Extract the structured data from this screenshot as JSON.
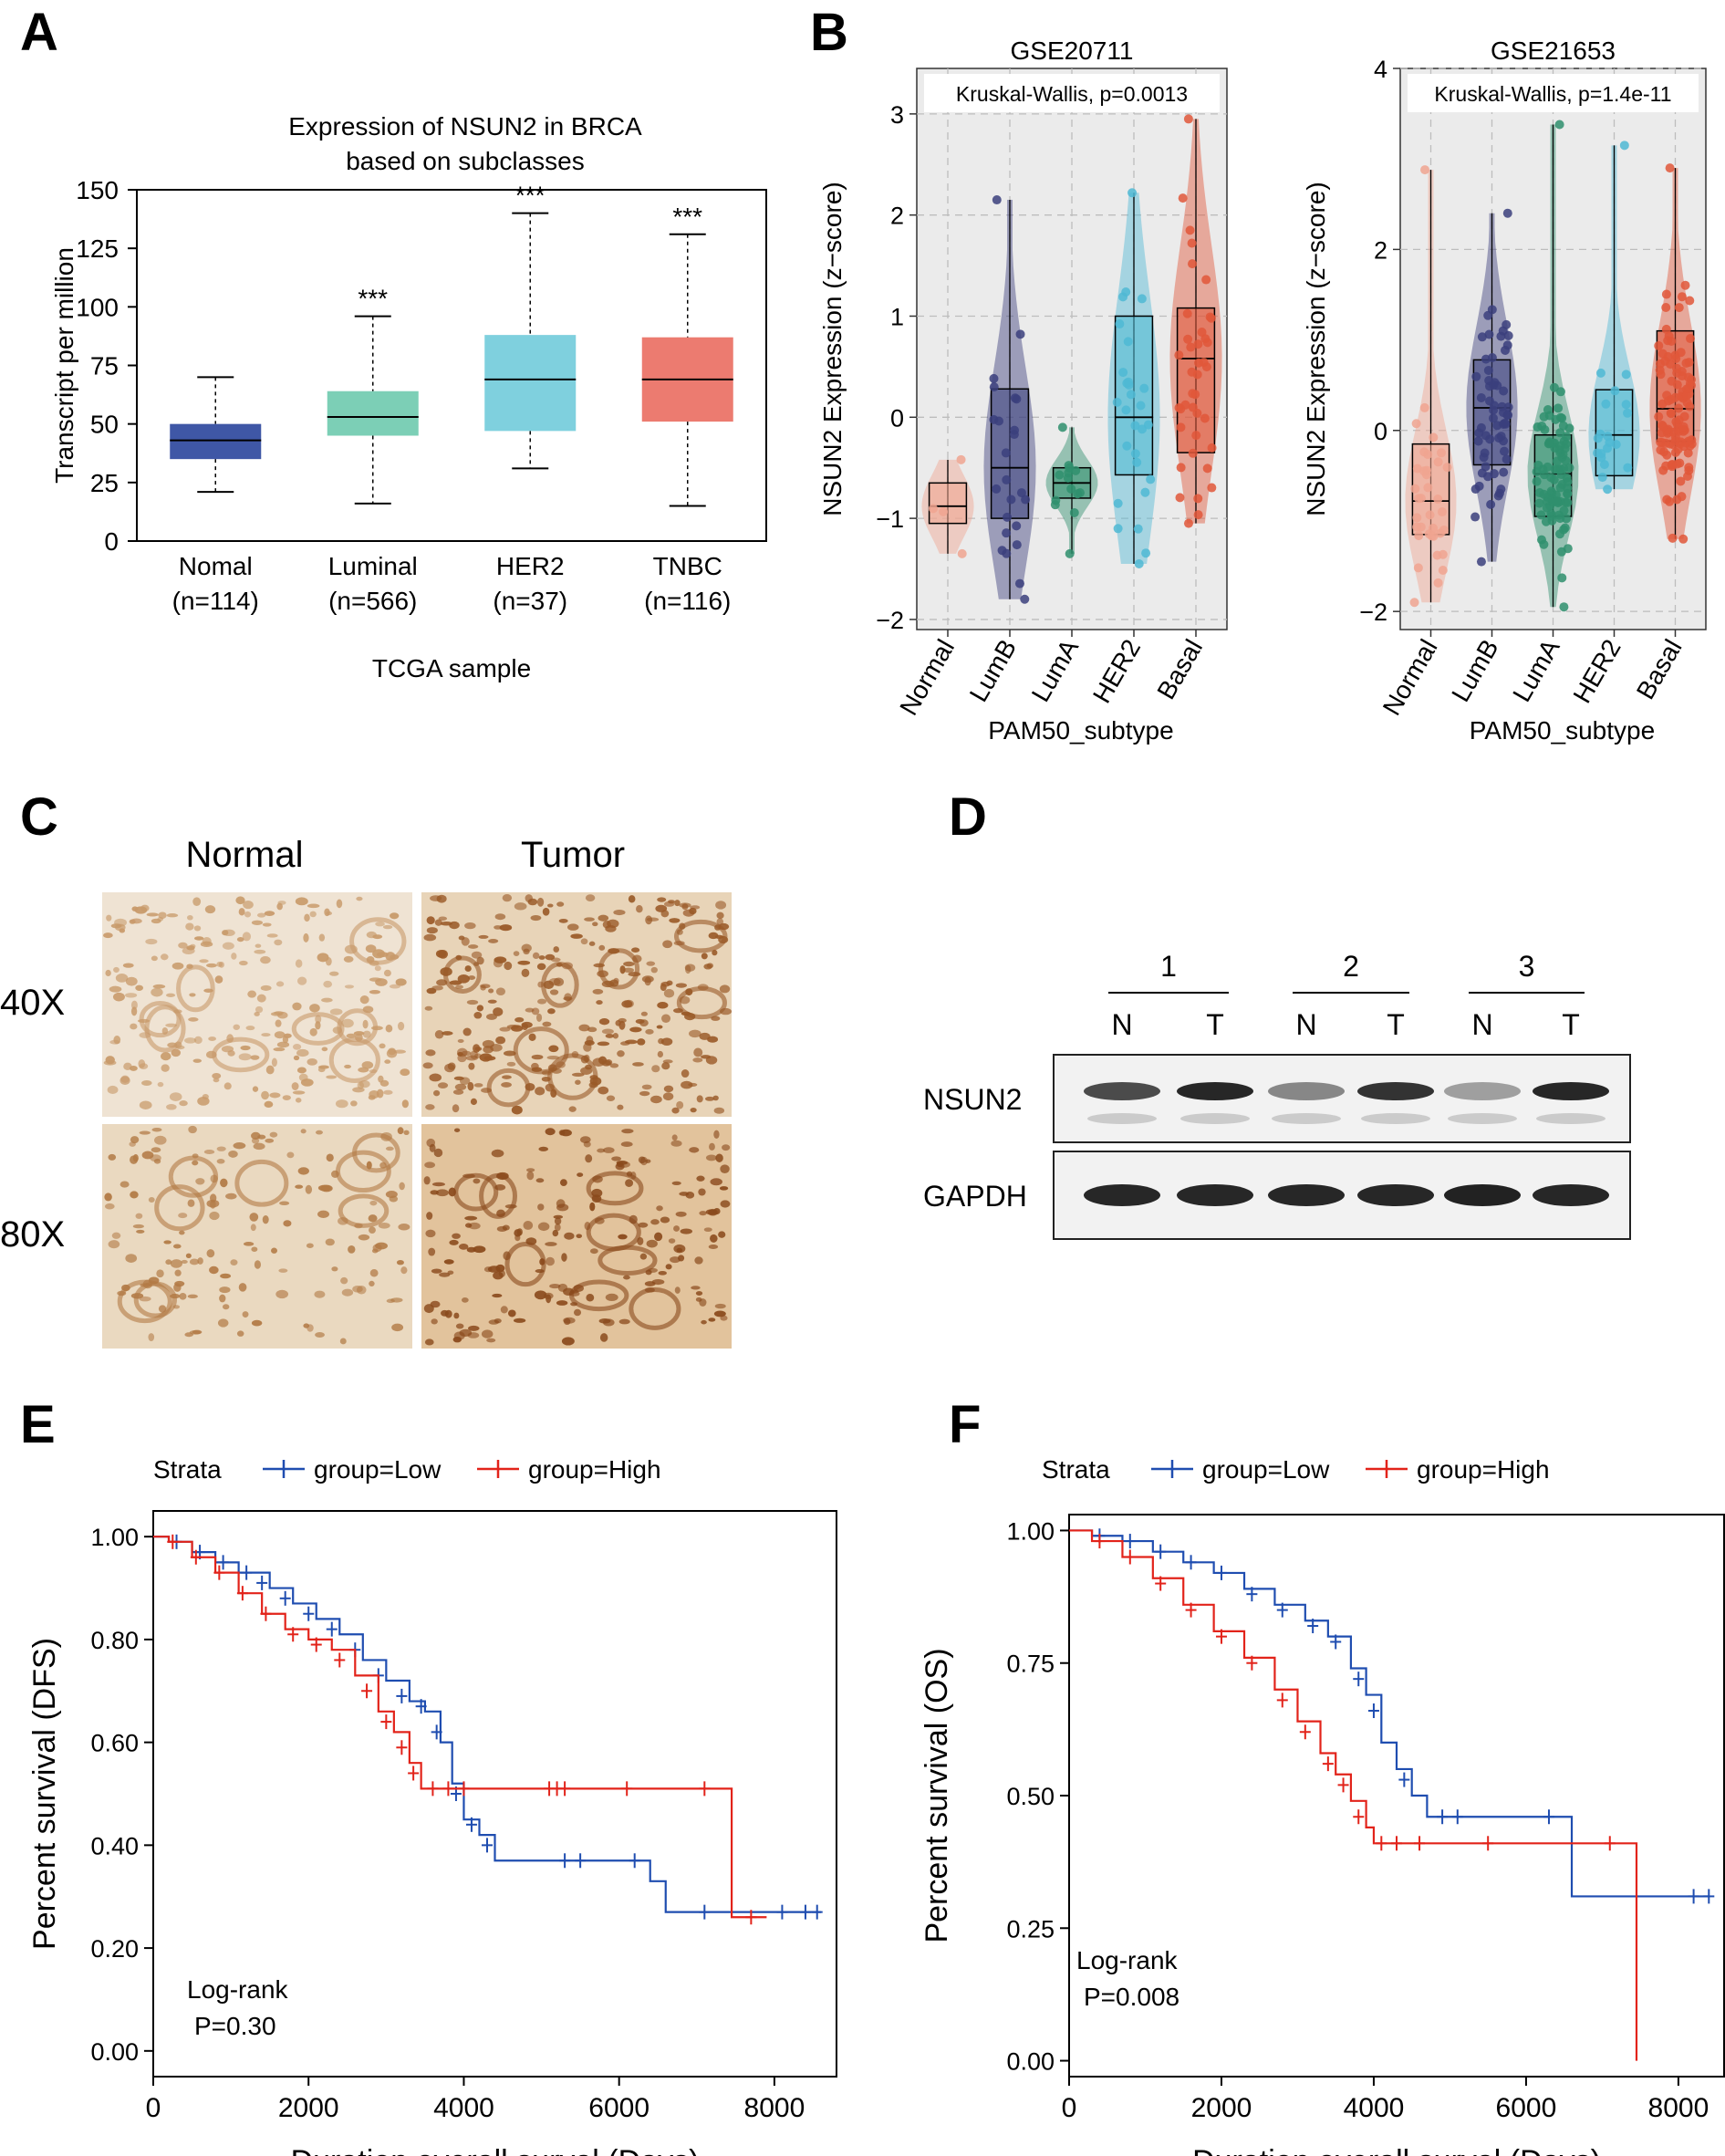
{
  "panel_labels": {
    "a": "A",
    "b": "B",
    "c": "C",
    "d": "D",
    "e": "E",
    "f": "F"
  },
  "colors": {
    "normal_blue": "#3f57a6",
    "luminal": "#7ccfb6",
    "her2": "#7fd0de",
    "tnbc": "#ec7b70",
    "v_normal": "#f0a590",
    "v_lumb": "#3b3f7d",
    "v_luma": "#2f8f6d",
    "v_her2": "#4fb9d4",
    "v_basal": "#e0573a",
    "km_low": "#1f4db0",
    "km_high": "#e2231a"
  },
  "chart_data": [
    {
      "id": "A",
      "type": "box",
      "title": "Expression of NSUN2 in BRCA",
      "subtitle": "based on subclasses",
      "xlabel": "TCGA sample",
      "ylabel": "Transcript per million",
      "ylim": [
        0,
        150
      ],
      "yticks": [
        0,
        25,
        50,
        75,
        100,
        125,
        150
      ],
      "categories": [
        {
          "name": "Nomal",
          "n": "(n=114)",
          "min": 21,
          "q1": 35,
          "median": 43,
          "q3": 50,
          "max": 70,
          "sig": "",
          "color": "normal_blue"
        },
        {
          "name": "Luminal",
          "n": "(n=566)",
          "min": 16,
          "q1": 45,
          "median": 53,
          "q3": 64,
          "max": 96,
          "sig": "***",
          "color": "luminal"
        },
        {
          "name": "HER2",
          "n": "(n=37)",
          "min": 31,
          "q1": 47,
          "median": 69,
          "q3": 88,
          "max": 140,
          "sig": "***",
          "color": "her2"
        },
        {
          "name": "TNBC",
          "n": "(n=116)",
          "min": 15,
          "q1": 51,
          "median": 69,
          "q3": 87,
          "max": 131,
          "sig": "***",
          "color": "tnbc"
        }
      ]
    },
    {
      "id": "B1",
      "type": "violin-box",
      "title": "GSE20711",
      "annotation": "Kruskal-Wallis, p=0.0013",
      "xlabel": "PAM50_subtype",
      "ylabel": "NSUN2 Expression (z−score)",
      "ylim": [
        -2.1,
        3.45
      ],
      "yticks": [
        -2,
        -1,
        0,
        1,
        2,
        3
      ],
      "ytick_labels": [
        "−2",
        "−1",
        "0",
        "1",
        "2",
        "3"
      ],
      "categories": [
        {
          "name": "Normal",
          "min": -1.35,
          "q1": -1.05,
          "median": -0.88,
          "q3": -0.65,
          "max": -0.42,
          "color": "v_normal",
          "n": 4
        },
        {
          "name": "LumB",
          "min": -1.8,
          "q1": -1.0,
          "median": -0.5,
          "q3": 0.28,
          "max": 2.15,
          "color": "v_lumb",
          "n": 24
        },
        {
          "name": "LumA",
          "min": -1.35,
          "q1": -0.8,
          "median": -0.65,
          "q3": -0.5,
          "max": -0.1,
          "color": "v_luma",
          "n": 14
        },
        {
          "name": "HER2",
          "min": -1.45,
          "q1": -0.57,
          "median": 0.0,
          "q3": 1.0,
          "max": 2.22,
          "color": "v_her2",
          "n": 28
        },
        {
          "name": "Basal",
          "min": -1.05,
          "q1": -0.35,
          "median": 0.58,
          "q3": 1.08,
          "max": 2.95,
          "color": "v_basal",
          "n": 40
        }
      ]
    },
    {
      "id": "B2",
      "type": "violin-box",
      "title": "GSE21653",
      "annotation": "Kruskal-Wallis, p=1.4e-11",
      "xlabel": "PAM50_subtype",
      "ylabel": "NSUN2 Expression (z−score)",
      "ylim": [
        -2.2,
        4.0
      ],
      "yticks": [
        -2,
        0,
        2,
        4
      ],
      "ytick_labels": [
        "−2",
        "0",
        "2",
        "4"
      ],
      "categories": [
        {
          "name": "Normal",
          "min": -1.9,
          "q1": -1.15,
          "median": -0.78,
          "q3": -0.15,
          "max": 2.88,
          "color": "v_normal",
          "n": 36
        },
        {
          "name": "LumB",
          "min": -1.45,
          "q1": -0.38,
          "median": 0.25,
          "q3": 0.78,
          "max": 2.4,
          "color": "v_lumb",
          "n": 60
        },
        {
          "name": "LumA",
          "min": -1.95,
          "q1": -0.95,
          "median": -0.48,
          "q3": -0.05,
          "max": 3.38,
          "color": "v_luma",
          "n": 90
        },
        {
          "name": "HER2",
          "min": -0.65,
          "q1": -0.5,
          "median": -0.05,
          "q3": 0.45,
          "max": 3.15,
          "color": "v_her2",
          "n": 20
        },
        {
          "name": "Basal",
          "min": -1.2,
          "q1": -0.12,
          "median": 0.24,
          "q3": 1.1,
          "max": 2.9,
          "color": "v_basal",
          "n": 110
        }
      ]
    },
    {
      "id": "E",
      "type": "line",
      "subtype": "kaplan-meier",
      "legend_title": "Strata",
      "series": [
        {
          "name": "group=Low",
          "color": "km_low",
          "points": [
            [
              0,
              1.0
            ],
            [
              200,
              0.99
            ],
            [
              500,
              0.97
            ],
            [
              800,
              0.95
            ],
            [
              1100,
              0.93
            ],
            [
              1500,
              0.9
            ],
            [
              1800,
              0.87
            ],
            [
              2100,
              0.84
            ],
            [
              2400,
              0.81
            ],
            [
              2700,
              0.76
            ],
            [
              3000,
              0.72
            ],
            [
              3300,
              0.68
            ],
            [
              3500,
              0.66
            ],
            [
              3700,
              0.6
            ],
            [
              3850,
              0.52
            ],
            [
              4000,
              0.45
            ],
            [
              4200,
              0.42
            ],
            [
              4400,
              0.37
            ],
            [
              6300,
              0.37
            ],
            [
              6400,
              0.33
            ],
            [
              6600,
              0.27
            ],
            [
              8600,
              0.27
            ]
          ],
          "censors": [
            [
              300,
              0.99
            ],
            [
              600,
              0.97
            ],
            [
              900,
              0.95
            ],
            [
              1200,
              0.93
            ],
            [
              1400,
              0.91
            ],
            [
              1700,
              0.88
            ],
            [
              2000,
              0.85
            ],
            [
              2300,
              0.82
            ],
            [
              2600,
              0.78
            ],
            [
              2900,
              0.73
            ],
            [
              3200,
              0.69
            ],
            [
              3450,
              0.67
            ],
            [
              3650,
              0.62
            ],
            [
              3900,
              0.5
            ],
            [
              4100,
              0.44
            ],
            [
              4300,
              0.4
            ],
            [
              5300,
              0.37
            ],
            [
              5500,
              0.37
            ],
            [
              6200,
              0.37
            ],
            [
              7100,
              0.27
            ],
            [
              8100,
              0.27
            ],
            [
              8400,
              0.27
            ],
            [
              8550,
              0.27
            ]
          ]
        },
        {
          "name": "group=High",
          "color": "km_high",
          "points": [
            [
              0,
              1.0
            ],
            [
              200,
              0.99
            ],
            [
              500,
              0.96
            ],
            [
              800,
              0.93
            ],
            [
              1100,
              0.89
            ],
            [
              1400,
              0.85
            ],
            [
              1700,
              0.82
            ],
            [
              2000,
              0.8
            ],
            [
              2300,
              0.78
            ],
            [
              2600,
              0.73
            ],
            [
              2900,
              0.66
            ],
            [
              3100,
              0.62
            ],
            [
              3300,
              0.56
            ],
            [
              3450,
              0.51
            ],
            [
              7400,
              0.51
            ],
            [
              7450,
              0.26
            ],
            [
              7900,
              0.26
            ]
          ],
          "censors": [
            [
              250,
              0.99
            ],
            [
              550,
              0.96
            ],
            [
              850,
              0.93
            ],
            [
              1150,
              0.89
            ],
            [
              1450,
              0.85
            ],
            [
              1800,
              0.81
            ],
            [
              2100,
              0.79
            ],
            [
              2400,
              0.76
            ],
            [
              2750,
              0.7
            ],
            [
              3000,
              0.64
            ],
            [
              3200,
              0.59
            ],
            [
              3350,
              0.54
            ],
            [
              3600,
              0.51
            ],
            [
              3800,
              0.51
            ],
            [
              4000,
              0.51
            ],
            [
              5100,
              0.51
            ],
            [
              5200,
              0.51
            ],
            [
              5300,
              0.51
            ],
            [
              6100,
              0.51
            ],
            [
              7100,
              0.51
            ],
            [
              7700,
              0.26
            ]
          ]
        }
      ],
      "xlabel": "Duration overall surval (Days)",
      "ylabel": "Percent survival (DFS)",
      "xlim": [
        0,
        8800
      ],
      "ylim": [
        -0.05,
        1.05
      ],
      "xticks": [
        0,
        2000,
        4000,
        6000,
        8000
      ],
      "yticks": [
        0.0,
        0.2,
        0.4,
        0.6,
        0.8,
        1.0
      ],
      "ytick_labels": [
        "0.00",
        "0.20",
        "0.40",
        "0.60",
        "0.80",
        "1.00"
      ],
      "annotation": [
        "Log-rank",
        "P=0.30"
      ]
    },
    {
      "id": "F",
      "type": "line",
      "subtype": "kaplan-meier",
      "legend_title": "Strata",
      "series": [
        {
          "name": "group=Low",
          "color": "km_low",
          "points": [
            [
              0,
              1.0
            ],
            [
              300,
              0.99
            ],
            [
              700,
              0.98
            ],
            [
              1100,
              0.96
            ],
            [
              1500,
              0.94
            ],
            [
              1900,
              0.92
            ],
            [
              2300,
              0.89
            ],
            [
              2700,
              0.86
            ],
            [
              3100,
              0.83
            ],
            [
              3400,
              0.8
            ],
            [
              3700,
              0.74
            ],
            [
              3900,
              0.69
            ],
            [
              4100,
              0.6
            ],
            [
              4300,
              0.55
            ],
            [
              4500,
              0.5
            ],
            [
              4700,
              0.46
            ],
            [
              6400,
              0.46
            ],
            [
              6600,
              0.31
            ],
            [
              8400,
              0.31
            ]
          ],
          "censors": [
            [
              400,
              0.99
            ],
            [
              800,
              0.98
            ],
            [
              1200,
              0.96
            ],
            [
              1600,
              0.94
            ],
            [
              2000,
              0.92
            ],
            [
              2400,
              0.88
            ],
            [
              2800,
              0.85
            ],
            [
              3200,
              0.82
            ],
            [
              3500,
              0.79
            ],
            [
              3800,
              0.72
            ],
            [
              4000,
              0.66
            ],
            [
              4400,
              0.53
            ],
            [
              4900,
              0.46
            ],
            [
              5100,
              0.46
            ],
            [
              6300,
              0.46
            ],
            [
              8200,
              0.31
            ],
            [
              8400,
              0.31
            ]
          ]
        },
        {
          "name": "group=High",
          "color": "km_high",
          "points": [
            [
              0,
              1.0
            ],
            [
              300,
              0.98
            ],
            [
              700,
              0.95
            ],
            [
              1100,
              0.91
            ],
            [
              1500,
              0.86
            ],
            [
              1900,
              0.81
            ],
            [
              2300,
              0.76
            ],
            [
              2700,
              0.7
            ],
            [
              3000,
              0.64
            ],
            [
              3300,
              0.58
            ],
            [
              3500,
              0.54
            ],
            [
              3700,
              0.49
            ],
            [
              3900,
              0.44
            ],
            [
              4000,
              0.41
            ],
            [
              6400,
              0.41
            ],
            [
              7450,
              0.41
            ],
            [
              7450,
              0.0
            ]
          ],
          "censors": [
            [
              400,
              0.98
            ],
            [
              800,
              0.95
            ],
            [
              1200,
              0.9
            ],
            [
              1600,
              0.85
            ],
            [
              2000,
              0.8
            ],
            [
              2400,
              0.75
            ],
            [
              2800,
              0.68
            ],
            [
              3100,
              0.62
            ],
            [
              3400,
              0.56
            ],
            [
              3600,
              0.52
            ],
            [
              3800,
              0.46
            ],
            [
              4100,
              0.41
            ],
            [
              4300,
              0.41
            ],
            [
              4600,
              0.41
            ],
            [
              5500,
              0.41
            ],
            [
              7100,
              0.41
            ]
          ]
        }
      ],
      "xlabel": "Duration overall surval (Days)",
      "ylabel": "Percent survival (OS)",
      "xlim": [
        0,
        8600
      ],
      "ylim": [
        -0.03,
        1.03
      ],
      "xticks": [
        0,
        2000,
        4000,
        6000,
        8000
      ],
      "yticks": [
        0.0,
        0.25,
        0.5,
        0.75,
        1.0
      ],
      "ytick_labels": [
        "0.00",
        "0.25",
        "0.50",
        "0.75",
        "1.00"
      ],
      "annotation": [
        "Log-rank",
        "P=0.008"
      ]
    }
  ],
  "ihc": {
    "col_labels": [
      "Normal",
      "Tumor"
    ],
    "row_labels": [
      "40X",
      "80X"
    ]
  },
  "western": {
    "sample_groups": [
      "1",
      "2",
      "3"
    ],
    "lanes": [
      "N",
      "T",
      "N",
      "T",
      "N",
      "T"
    ],
    "rows": [
      {
        "label": "NSUN2",
        "intensities": [
          0.75,
          0.9,
          0.5,
          0.85,
          0.4,
          0.9
        ]
      },
      {
        "label": "GAPDH",
        "intensities": [
          0.9,
          0.9,
          0.9,
          0.9,
          0.92,
          0.9
        ]
      }
    ]
  }
}
